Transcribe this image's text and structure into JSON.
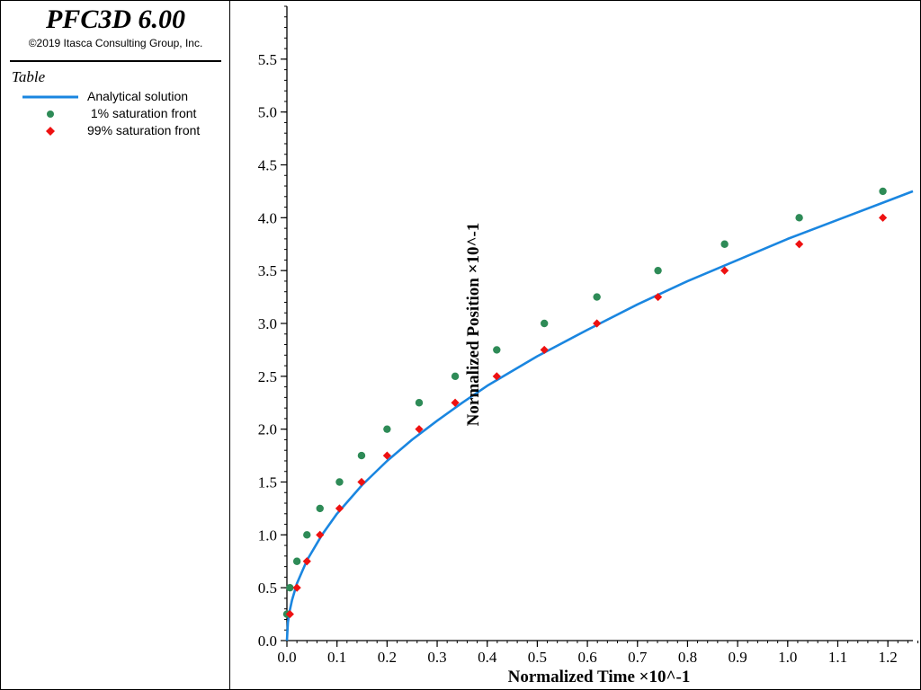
{
  "window": {
    "app_title": "PFC3D 6.00",
    "copyright": "©2019 Itasca Consulting Group, Inc."
  },
  "legend": {
    "heading": "Table",
    "items": [
      {
        "label": "Analytical solution",
        "marker": "line",
        "color": "#1a86e0"
      },
      {
        "label": " 1% saturation front",
        "marker": "circle",
        "color": "#2e8b57"
      },
      {
        "label": "99% saturation front",
        "marker": "diamond",
        "color": "#ee1111"
      }
    ]
  },
  "chart_data": {
    "type": "scatter",
    "xlabel": "Normalized Time ×10^-1",
    "ylabel": "Normalized Position ×10^-1",
    "xlim": [
      0.0,
      1.25
    ],
    "ylim": [
      0.0,
      6.0
    ],
    "xticks": [
      "0.0",
      "0.1",
      "0.2",
      "0.3",
      "0.4",
      "0.5",
      "0.6",
      "0.7",
      "0.8",
      "0.9",
      "1.0",
      "1.1",
      "1.2"
    ],
    "yticks": [
      "0.0",
      "0.5",
      "1.0",
      "1.5",
      "2.0",
      "2.5",
      "3.0",
      "3.5",
      "4.0",
      "4.5",
      "5.0",
      "5.5"
    ],
    "grid": false,
    "legend_placement": "sidebar",
    "series": [
      {
        "name": "Analytical solution",
        "kind": "line",
        "color": "#1a86e0",
        "x": [
          0.0,
          0.002,
          0.005,
          0.01,
          0.02,
          0.04,
          0.07,
          0.1,
          0.15,
          0.2,
          0.25,
          0.3,
          0.35,
          0.4,
          0.45,
          0.5,
          0.6,
          0.7,
          0.8,
          0.9,
          1.0,
          1.1,
          1.2,
          1.25
        ],
        "y": [
          0.0,
          0.17,
          0.27,
          0.38,
          0.54,
          0.76,
          1.0,
          1.2,
          1.47,
          1.7,
          1.9,
          2.08,
          2.25,
          2.41,
          2.55,
          2.69,
          2.94,
          3.18,
          3.4,
          3.6,
          3.8,
          3.98,
          4.16,
          4.25
        ]
      },
      {
        "name": " 1% saturation front",
        "kind": "circle",
        "color": "#2e8b57",
        "x": [
          0.0,
          0.006,
          0.02,
          0.04,
          0.066,
          0.105,
          0.149,
          0.2,
          0.264,
          0.336,
          0.419,
          0.514,
          0.619,
          0.741,
          0.874,
          1.023,
          1.19
        ],
        "y": [
          0.25,
          0.5,
          0.75,
          1.0,
          1.25,
          1.5,
          1.75,
          2.0,
          2.25,
          2.5,
          2.75,
          3.0,
          3.25,
          3.5,
          3.75,
          4.0,
          4.25
        ]
      },
      {
        "name": "99% saturation front",
        "kind": "diamond",
        "color": "#ee1111",
        "x": [
          0.006,
          0.02,
          0.04,
          0.066,
          0.105,
          0.149,
          0.2,
          0.264,
          0.336,
          0.419,
          0.514,
          0.619,
          0.741,
          0.874,
          1.023,
          1.19
        ],
        "y": [
          0.25,
          0.5,
          0.75,
          1.0,
          1.25,
          1.5,
          1.75,
          2.0,
          2.25,
          2.5,
          2.75,
          3.0,
          3.25,
          3.5,
          3.75,
          4.0
        ]
      }
    ]
  }
}
